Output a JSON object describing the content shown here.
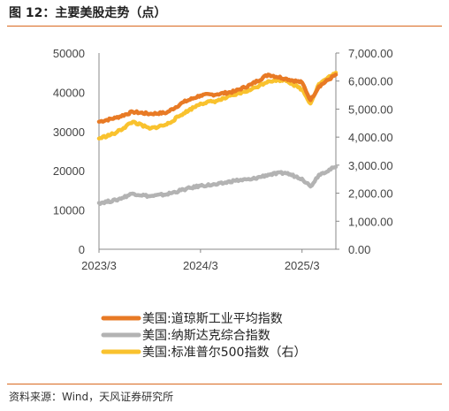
{
  "title": "图 12：主要美股走势（点）",
  "source": "资料来源：Wind，天风证券研究所",
  "colors": {
    "dow": "#e87a25",
    "nasdaq": "#b3b3b3",
    "sp500": "#f9c22e",
    "accent": "#d9691f"
  },
  "chart_data": {
    "type": "line",
    "title": "",
    "x_ticks": [
      "2023/3",
      "2024/3",
      "2025/3"
    ],
    "x_range": [
      "2023/3",
      "2025/7"
    ],
    "y_left": {
      "ylim": [
        0,
        50000
      ],
      "ticks": [
        "0",
        "10000",
        "20000",
        "30000",
        "40000",
        "50000"
      ]
    },
    "y_right": {
      "ylim": [
        0,
        7000
      ],
      "ticks": [
        "0.00",
        "1,000.00",
        "2,000.00",
        "3,000.00",
        "4,000.00",
        "5,000.00",
        "6,000.00",
        "7,000.00"
      ]
    },
    "legend_position": "bottom",
    "series": [
      {
        "name": "美国:道琼斯工业平均指数",
        "axis": "left",
        "color": "#e87a25",
        "x": [
          "2023/3",
          "2023/5",
          "2023/7",
          "2023/9",
          "2023/11",
          "2024/1",
          "2024/3",
          "2024/5",
          "2024/7",
          "2024/9",
          "2024/11",
          "2025/1",
          "2025/3",
          "2025/4",
          "2025/5",
          "2025/7"
        ],
        "y": [
          32500,
          33500,
          35000,
          34500,
          34800,
          37500,
          39200,
          39500,
          40200,
          42000,
          44500,
          43500,
          42500,
          38000,
          41500,
          44500
        ]
      },
      {
        "name": "美国:纳斯达克综合指数",
        "axis": "left",
        "color": "#b3b3b3",
        "x": [
          "2023/3",
          "2023/5",
          "2023/7",
          "2023/9",
          "2023/11",
          "2024/1",
          "2024/3",
          "2024/5",
          "2024/7",
          "2024/9",
          "2024/11",
          "2025/1",
          "2025/3",
          "2025/4",
          "2025/5",
          "2025/7"
        ],
        "y": [
          11800,
          12500,
          14200,
          13500,
          14000,
          15200,
          16200,
          16500,
          17500,
          17800,
          19000,
          19500,
          18000,
          16000,
          19000,
          21000
        ]
      },
      {
        "name": "美国:标准普尔500指数（右）",
        "axis": "right",
        "color": "#f9c22e",
        "x": [
          "2023/3",
          "2023/5",
          "2023/7",
          "2023/9",
          "2023/11",
          "2024/1",
          "2024/3",
          "2024/5",
          "2024/7",
          "2024/9",
          "2024/11",
          "2025/1",
          "2025/3",
          "2025/4",
          "2025/5",
          "2025/7"
        ],
        "y": [
          3950,
          4150,
          4550,
          4300,
          4450,
          4850,
          5200,
          5300,
          5500,
          5700,
          6000,
          6050,
          5700,
          5200,
          5900,
          6300
        ]
      }
    ]
  }
}
